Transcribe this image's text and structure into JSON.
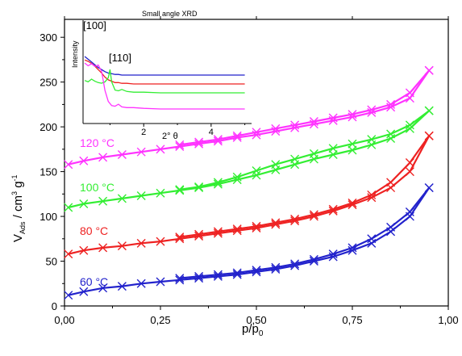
{
  "chart_data": [
    {
      "type": "line",
      "title": "",
      "xlabel": "p/p",
      "xlabel_sub": "0",
      "ylabel": {
        "v": "V",
        "v_sub": "Ads",
        "unit_a": " / cm",
        "unit_a_sup": "3",
        "unit_b": " g",
        "unit_b_sup": "-1"
      },
      "xlim": [
        0.0,
        1.0
      ],
      "ylim": [
        0,
        320
      ],
      "x_ticks": [
        "0,00",
        "0,25",
        "0,50",
        "0,75",
        "1,00"
      ],
      "x_tick_values": [
        0.0,
        0.25,
        0.5,
        0.75,
        1.0
      ],
      "y_ticks": [
        "0",
        "50",
        "100",
        "150",
        "200",
        "250",
        "300"
      ],
      "y_tick_values": [
        0,
        50,
        100,
        150,
        200,
        250,
        300
      ],
      "grid": false,
      "marker": "x",
      "series": [
        {
          "name": "120 °C",
          "color": "#ff33ff",
          "adsorption": {
            "x": [
              0.01,
              0.05,
              0.1,
              0.15,
              0.2,
              0.25,
              0.3,
              0.35,
              0.4,
              0.45,
              0.5,
              0.55,
              0.6,
              0.65,
              0.7,
              0.75,
              0.8,
              0.85,
              0.9,
              0.95
            ],
            "y": [
              158,
              162,
              166,
              169,
              172,
              175,
              178,
              181,
              184,
              188,
              191,
              195,
              199,
              203,
              207,
              211,
              216,
              222,
              232,
              263
            ]
          },
          "desorption": {
            "x": [
              0.95,
              0.9,
              0.85,
              0.8,
              0.75,
              0.7,
              0.65,
              0.6,
              0.55,
              0.5,
              0.45,
              0.4,
              0.35,
              0.3
            ],
            "y": [
              263,
              238,
              225,
              219,
              214,
              210,
              206,
              202,
              198,
              194,
              190,
              186,
              183,
              180
            ]
          }
        },
        {
          "name": "100 °C",
          "color": "#33ee33",
          "adsorption": {
            "x": [
              0.01,
              0.05,
              0.1,
              0.15,
              0.2,
              0.25,
              0.3,
              0.35,
              0.4,
              0.45,
              0.5,
              0.55,
              0.6,
              0.65,
              0.7,
              0.75,
              0.8,
              0.85,
              0.9,
              0.95
            ],
            "y": [
              110,
              114,
              117,
              120,
              123,
              126,
              129,
              132,
              136,
              141,
              146,
              152,
              158,
              164,
              169,
              174,
              180,
              187,
              198,
              218
            ]
          },
          "desorption": {
            "x": [
              0.95,
              0.9,
              0.85,
              0.8,
              0.75,
              0.7,
              0.65,
              0.6,
              0.55,
              0.5,
              0.45,
              0.4,
              0.35,
              0.3
            ],
            "y": [
              218,
              202,
              192,
              186,
              181,
              176,
              170,
              164,
              158,
              151,
              144,
              138,
              133,
              130
            ]
          }
        },
        {
          "name": "80 °C",
          "color": "#ee2222",
          "adsorption": {
            "x": [
              0.01,
              0.05,
              0.1,
              0.15,
              0.2,
              0.25,
              0.3,
              0.35,
              0.4,
              0.45,
              0.5,
              0.55,
              0.6,
              0.65,
              0.7,
              0.75,
              0.8,
              0.85,
              0.9,
              0.95
            ],
            "y": [
              58,
              62,
              65,
              67,
              70,
              72,
              75,
              78,
              81,
              84,
              87,
              91,
              95,
              100,
              106,
              113,
              121,
              132,
              150,
              190
            ]
          },
          "desorption": {
            "x": [
              0.95,
              0.9,
              0.85,
              0.8,
              0.75,
              0.7,
              0.65,
              0.6,
              0.55,
              0.5,
              0.45,
              0.4,
              0.35,
              0.3
            ],
            "y": [
              190,
              160,
              138,
              124,
              115,
              108,
              102,
              97,
              93,
              89,
              86,
              83,
              80,
              77
            ]
          }
        },
        {
          "name": "60 °C",
          "color": "#2222cc",
          "adsorption": {
            "x": [
              0.01,
              0.05,
              0.1,
              0.15,
              0.2,
              0.25,
              0.3,
              0.35,
              0.4,
              0.45,
              0.5,
              0.55,
              0.6,
              0.65,
              0.7,
              0.75,
              0.8,
              0.85,
              0.9,
              0.95
            ],
            "y": [
              12,
              16,
              20,
              22,
              25,
              27,
              29,
              31,
              33,
              35,
              38,
              41,
              45,
              50,
              55,
              62,
              70,
              83,
              100,
              132
            ]
          },
          "desorption": {
            "x": [
              0.95,
              0.9,
              0.85,
              0.8,
              0.75,
              0.7,
              0.65,
              0.6,
              0.55,
              0.5,
              0.45,
              0.4,
              0.35,
              0.3
            ],
            "y": [
              132,
              105,
              88,
              75,
              65,
              58,
              52,
              47,
              43,
              40,
              37,
              35,
              33,
              31
            ]
          }
        }
      ]
    },
    {
      "type": "line",
      "title": "Small angle XRD",
      "xlabel": "2° θ",
      "ylabel": "Intensity",
      "xlim": [
        0.2,
        5.2
      ],
      "x_ticks": [
        "2",
        "4"
      ],
      "x_tick_values": [
        2,
        4
      ],
      "y_ticks": [],
      "annotations": [
        {
          "text": "[100]",
          "x": 0.55
        },
        {
          "text": "[110]",
          "x": 1.25
        }
      ],
      "series": [
        {
          "color": "#ff33ff",
          "x": [
            0.25,
            0.35,
            0.45,
            0.55,
            0.65,
            0.75,
            0.85,
            0.95,
            1.05,
            1.15,
            1.25,
            1.35,
            1.5,
            1.7,
            2.0,
            2.5,
            3.0,
            4.0,
            5.0
          ],
          "y": [
            1.0,
            0.96,
            0.99,
            0.95,
            0.97,
            0.88,
            0.6,
            0.44,
            0.38,
            0.37,
            0.4,
            0.36,
            0.35,
            0.35,
            0.34,
            0.33,
            0.33,
            0.33,
            0.33
          ]
        },
        {
          "color": "#33ee33",
          "x": [
            0.25,
            0.35,
            0.45,
            0.55,
            0.65,
            0.75,
            0.85,
            0.95,
            1.0,
            1.05,
            1.15,
            1.25,
            1.35,
            1.5,
            1.7,
            2.0,
            2.5,
            3.0,
            4.0,
            5.0
          ],
          "y": [
            0.58,
            0.56,
            0.6,
            0.57,
            0.55,
            0.54,
            0.56,
            0.62,
            0.74,
            0.56,
            0.44,
            0.43,
            0.45,
            0.42,
            0.41,
            0.41,
            0.4,
            0.4,
            0.4,
            0.4
          ]
        },
        {
          "color": "#ee2222",
          "x": [
            0.25,
            0.35,
            0.45,
            0.55,
            0.65,
            0.75,
            0.85,
            0.95,
            1.05,
            1.15,
            1.25,
            1.35,
            1.5,
            1.7,
            2.0,
            2.5,
            3.0,
            4.0,
            5.0
          ],
          "y": [
            0.6,
            0.58,
            0.55,
            0.51,
            0.46,
            0.41,
            0.35,
            0.31,
            0.29,
            0.27,
            0.27,
            0.26,
            0.26,
            0.25,
            0.25,
            0.25,
            0.25,
            0.25,
            0.25
          ]
        },
        {
          "color": "#2222cc",
          "x": [
            0.25,
            0.35,
            0.45,
            0.55,
            0.65,
            0.75,
            0.85,
            0.95,
            1.05,
            1.15,
            1.25,
            1.35,
            1.5,
            1.7,
            2.0,
            2.5,
            3.0,
            4.0,
            5.0
          ],
          "y": [
            0.38,
            0.34,
            0.3,
            0.26,
            0.22,
            0.19,
            0.16,
            0.14,
            0.13,
            0.12,
            0.12,
            0.11,
            0.11,
            0.11,
            0.11,
            0.11,
            0.11,
            0.11,
            0.11
          ]
        }
      ]
    }
  ]
}
